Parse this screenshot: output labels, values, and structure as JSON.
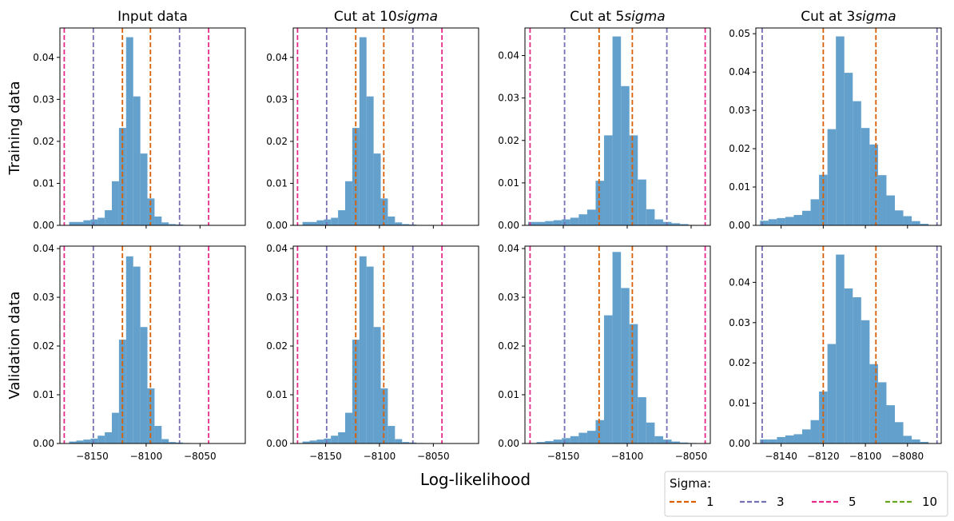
{
  "figure": {
    "xlabel": "Log-likelihood",
    "row_labels": [
      "Training data",
      "Validation data"
    ],
    "legend": {
      "title": "Sigma:",
      "entries": [
        {
          "label": "1",
          "color": "#d95f02"
        },
        {
          "label": "3",
          "color": "#7570b3"
        },
        {
          "label": "5",
          "color": "#e7298a"
        },
        {
          "label": "10",
          "color": "#66a61e"
        }
      ]
    }
  },
  "colors": {
    "bar": "#5b9bc8",
    "sigma1": "#d95f02",
    "sigma3": "#7570b3",
    "sigma5": "#e7298a",
    "sigma10": "#66a61e"
  },
  "chart_data": [
    {
      "type": "bar",
      "row": 0,
      "col": 0,
      "title": "Input data",
      "title_parts": {
        "text": "Input data",
        "italic": ""
      },
      "ylabel": "Training data",
      "xlim": [
        -8180,
        -8008
      ],
      "ylim": [
        0,
        0.047
      ],
      "xticks": [
        -8150,
        -8100,
        -8050
      ],
      "show_xticklabels": false,
      "yticks": [
        0.0,
        0.01,
        0.02,
        0.03,
        0.04
      ],
      "ytick_labels": [
        "0.00",
        "0.01",
        "0.02",
        "0.03",
        "0.04"
      ],
      "bins": {
        "start": -8178,
        "width": 6.6
      },
      "values": [
        0.0,
        0.0008,
        0.0008,
        0.0012,
        0.0014,
        0.0018,
        0.0036,
        0.0105,
        0.0232,
        0.0448,
        0.0307,
        0.0171,
        0.0064,
        0.0021,
        0.0007,
        0.0003,
        0.0002,
        0.0001,
        0.0,
        0.0,
        0.0
      ],
      "sigma_lines": [
        {
          "sigma": "1",
          "x": [
            -8122,
            -8096
          ]
        },
        {
          "sigma": "3",
          "x": [
            -8149,
            -8069
          ]
        },
        {
          "sigma": "5",
          "x": [
            -8176,
            -8042
          ]
        }
      ]
    },
    {
      "type": "bar",
      "row": 0,
      "col": 1,
      "title": "Cut at 10sigma",
      "title_parts": {
        "text": "Cut at 10",
        "italic": "sigma"
      },
      "xlim": [
        -8180,
        -8008
      ],
      "ylim": [
        0,
        0.047
      ],
      "xticks": [
        -8150,
        -8100,
        -8050
      ],
      "show_xticklabels": false,
      "yticks": [
        0.0,
        0.01,
        0.02,
        0.03,
        0.04
      ],
      "ytick_labels": [
        "0.00",
        "0.01",
        "0.02",
        "0.03",
        "0.04"
      ],
      "bins": {
        "start": -8178,
        "width": 6.6
      },
      "values": [
        0.0,
        0.0008,
        0.0008,
        0.0012,
        0.0014,
        0.0018,
        0.0036,
        0.0105,
        0.0232,
        0.0448,
        0.0307,
        0.0171,
        0.0064,
        0.0021,
        0.0007,
        0.0003,
        0.0002,
        0.0001,
        0.0,
        0.0,
        0.0
      ],
      "sigma_lines": [
        {
          "sigma": "1",
          "x": [
            -8122,
            -8096
          ]
        },
        {
          "sigma": "3",
          "x": [
            -8149,
            -8069
          ]
        },
        {
          "sigma": "5",
          "x": [
            -8176,
            -8042
          ]
        }
      ]
    },
    {
      "type": "bar",
      "row": 0,
      "col": 2,
      "title": "Cut at 5sigma",
      "title_parts": {
        "text": "Cut at 5",
        "italic": "sigma"
      },
      "xlim": [
        -8180,
        -8035
      ],
      "ylim": [
        0,
        0.0465
      ],
      "xticks": [
        -8150,
        -8100,
        -8050
      ],
      "show_xticklabels": false,
      "yticks": [
        0.0,
        0.01,
        0.02,
        0.03,
        0.04
      ],
      "ytick_labels": [
        "0.00",
        "0.01",
        "0.02",
        "0.03",
        "0.04"
      ],
      "bins": {
        "start": -8177.5,
        "width": 6.6
      },
      "values": [
        0.0008,
        0.0008,
        0.001,
        0.0012,
        0.0014,
        0.0018,
        0.0026,
        0.0037,
        0.0105,
        0.0212,
        0.0445,
        0.0328,
        0.0212,
        0.0108,
        0.0038,
        0.0014,
        0.0008,
        0.0005,
        0.0003,
        0.0001,
        0.0
      ],
      "sigma_lines": [
        {
          "sigma": "1",
          "x": [
            -8122,
            -8096
          ]
        },
        {
          "sigma": "3",
          "x": [
            -8149,
            -8069
          ]
        },
        {
          "sigma": "5",
          "x": [
            -8176,
            -8039
          ]
        }
      ]
    },
    {
      "type": "bar",
      "row": 0,
      "col": 3,
      "title": "Cut at 3sigma",
      "title_parts": {
        "text": "Cut at 3",
        "italic": "sigma"
      },
      "xlim": [
        -8152,
        -8064
      ],
      "ylim": [
        0,
        0.0515
      ],
      "xticks": [
        -8140,
        -8120,
        -8100,
        -8080
      ],
      "show_xticklabels": false,
      "yticks": [
        0.0,
        0.01,
        0.02,
        0.03,
        0.04,
        0.05
      ],
      "ytick_labels": [
        "0.00",
        "0.01",
        "0.02",
        "0.03",
        "0.04",
        "0.05"
      ],
      "bins": {
        "start": -8150,
        "width": 4.0
      },
      "values": [
        0.0012,
        0.0016,
        0.0019,
        0.0022,
        0.0027,
        0.0038,
        0.0068,
        0.0132,
        0.0251,
        0.0493,
        0.0398,
        0.0324,
        0.0254,
        0.0211,
        0.0131,
        0.0078,
        0.0039,
        0.0024,
        0.0011,
        0.0004,
        0.0
      ],
      "sigma_lines": [
        {
          "sigma": "1",
          "x": [
            -8120,
            -8095
          ]
        },
        {
          "sigma": "3",
          "x": [
            -8149,
            -8066
          ]
        }
      ]
    },
    {
      "type": "bar",
      "row": 1,
      "col": 0,
      "ylabel": "Validation data",
      "xlim": [
        -8180,
        -8008
      ],
      "ylim": [
        0,
        0.0405
      ],
      "xticks": [
        -8150,
        -8100,
        -8050
      ],
      "show_xticklabels": true,
      "xtick_labels": [
        "−8150",
        "−8100",
        "−8050"
      ],
      "yticks": [
        0.0,
        0.01,
        0.02,
        0.03,
        0.04
      ],
      "ytick_labels": [
        "0.00",
        "0.01",
        "0.02",
        "0.03",
        "0.04"
      ],
      "bins": {
        "start": -8178,
        "width": 6.6
      },
      "values": [
        0.0,
        0.0004,
        0.0006,
        0.0008,
        0.001,
        0.0016,
        0.0023,
        0.0063,
        0.0213,
        0.0384,
        0.0363,
        0.0239,
        0.0113,
        0.0036,
        0.0009,
        0.0003,
        0.0002,
        0.0001,
        0.0,
        0.0,
        0.0
      ],
      "sigma_lines": [
        {
          "sigma": "1",
          "x": [
            -8122,
            -8096
          ]
        },
        {
          "sigma": "3",
          "x": [
            -8149,
            -8069
          ]
        },
        {
          "sigma": "5",
          "x": [
            -8176,
            -8042
          ]
        }
      ]
    },
    {
      "type": "bar",
      "row": 1,
      "col": 1,
      "xlim": [
        -8180,
        -8008
      ],
      "ylim": [
        0,
        0.0405
      ],
      "xticks": [
        -8150,
        -8100,
        -8050
      ],
      "show_xticklabels": true,
      "xtick_labels": [
        "−8150",
        "−8100",
        "−8050"
      ],
      "yticks": [
        0.0,
        0.01,
        0.02,
        0.03,
        0.04
      ],
      "ytick_labels": [
        "0.00",
        "0.01",
        "0.02",
        "0.03",
        "0.04"
      ],
      "bins": {
        "start": -8178,
        "width": 6.6
      },
      "values": [
        0.0,
        0.0004,
        0.0006,
        0.0008,
        0.001,
        0.0016,
        0.0023,
        0.0063,
        0.0213,
        0.0384,
        0.0363,
        0.0239,
        0.0113,
        0.0036,
        0.0009,
        0.0003,
        0.0002,
        0.0001,
        0.0,
        0.0,
        0.0
      ],
      "sigma_lines": [
        {
          "sigma": "1",
          "x": [
            -8122,
            -8096
          ]
        },
        {
          "sigma": "3",
          "x": [
            -8149,
            -8069
          ]
        },
        {
          "sigma": "5",
          "x": [
            -8176,
            -8042
          ]
        }
      ]
    },
    {
      "type": "bar",
      "row": 1,
      "col": 2,
      "xlim": [
        -8180,
        -8035
      ],
      "ylim": [
        0,
        0.0405
      ],
      "xticks": [
        -8150,
        -8100,
        -8050
      ],
      "show_xticklabels": true,
      "xtick_labels": [
        "−8150",
        "−8100",
        "−8050"
      ],
      "yticks": [
        0.0,
        0.01,
        0.02,
        0.03,
        0.04
      ],
      "ytick_labels": [
        "0.00",
        "0.01",
        "0.02",
        "0.03",
        "0.04"
      ],
      "bins": {
        "start": -8177.5,
        "width": 6.6
      },
      "values": [
        0.0001,
        0.0003,
        0.0005,
        0.0008,
        0.0011,
        0.0015,
        0.0022,
        0.0026,
        0.0048,
        0.0263,
        0.0393,
        0.0319,
        0.0245,
        0.0095,
        0.0043,
        0.0015,
        0.0008,
        0.0004,
        0.0002,
        0.0001,
        0.0
      ],
      "sigma_lines": [
        {
          "sigma": "1",
          "x": [
            -8122,
            -8096
          ]
        },
        {
          "sigma": "3",
          "x": [
            -8149,
            -8069
          ]
        },
        {
          "sigma": "5",
          "x": [
            -8176,
            -8039
          ]
        }
      ]
    },
    {
      "type": "bar",
      "row": 1,
      "col": 3,
      "xlim": [
        -8152,
        -8064
      ],
      "ylim": [
        0,
        0.049
      ],
      "xticks": [
        -8140,
        -8120,
        -8100,
        -8080
      ],
      "show_xticklabels": true,
      "xtick_labels": [
        "−8140",
        "−8120",
        "−8100",
        "−8080"
      ],
      "yticks": [
        0.0,
        0.01,
        0.02,
        0.03,
        0.04
      ],
      "ytick_labels": [
        "0.00",
        "0.01",
        "0.02",
        "0.03",
        "0.04"
      ],
      "bins": {
        "start": -8150,
        "width": 4.0
      },
      "values": [
        0.001,
        0.001,
        0.0016,
        0.002,
        0.0023,
        0.0035,
        0.0058,
        0.0129,
        0.0247,
        0.0469,
        0.0385,
        0.0363,
        0.0306,
        0.0197,
        0.0152,
        0.0095,
        0.0053,
        0.0019,
        0.001,
        0.0004,
        0.0
      ],
      "sigma_lines": [
        {
          "sigma": "1",
          "x": [
            -8120,
            -8095
          ]
        },
        {
          "sigma": "3",
          "x": [
            -8149,
            -8066
          ]
        }
      ]
    }
  ]
}
